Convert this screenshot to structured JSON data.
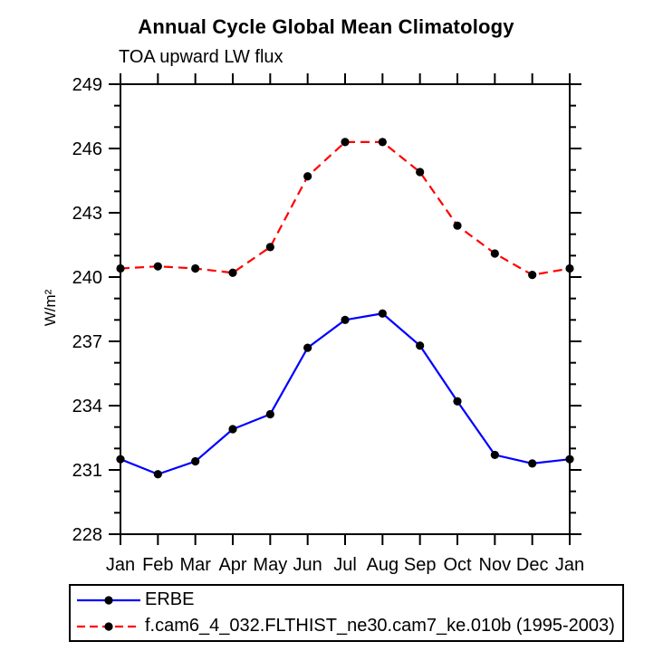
{
  "title": "Annual Cycle Global Mean Climatology",
  "subtitle": "TOA upward LW flux",
  "ylabel": "W/m²",
  "colors": {
    "erbe_line": "#0000ff",
    "model_line": "#ff0000",
    "marker": "#000000",
    "axis": "#000000",
    "background": "#ffffff"
  },
  "legend": {
    "items": [
      {
        "label": "ERBE",
        "color": "#0000ff",
        "style": "solid"
      },
      {
        "label": "f.cam6_4_032.FLTHIST_ne30.cam7_ke.010b (1995-2003)",
        "color": "#ff0000",
        "style": "dashed"
      }
    ]
  },
  "chart_data": {
    "type": "line",
    "title": "Annual Cycle Global Mean Climatology",
    "subtitle": "TOA upward LW flux",
    "xlabel": "",
    "ylabel": "W/m²",
    "categories": [
      "Jan",
      "Feb",
      "Mar",
      "Apr",
      "May",
      "Jun",
      "Jul",
      "Aug",
      "Sep",
      "Oct",
      "Nov",
      "Dec",
      "Jan"
    ],
    "ylim": [
      228,
      249
    ],
    "yticks": [
      228,
      231,
      234,
      237,
      240,
      243,
      246,
      249
    ],
    "ytick_major": 3,
    "ytick_minor": 1,
    "grid": false,
    "legend_position": "bottom",
    "marker_color": "#000000",
    "series": [
      {
        "name": "ERBE",
        "color": "#0000ff",
        "line_style": "solid",
        "marker": "circle",
        "values": [
          231.5,
          230.8,
          231.4,
          232.9,
          233.6,
          236.7,
          238.0,
          238.3,
          236.8,
          234.2,
          231.7,
          231.3,
          231.5
        ]
      },
      {
        "name": "f.cam6_4_032.FLTHIST_ne30.cam7_ke.010b (1995-2003)",
        "color": "#ff0000",
        "line_style": "dashed",
        "marker": "circle",
        "values": [
          240.4,
          240.5,
          240.4,
          240.2,
          241.4,
          244.7,
          246.3,
          246.3,
          244.9,
          242.4,
          241.1,
          240.1,
          240.4
        ]
      }
    ]
  }
}
